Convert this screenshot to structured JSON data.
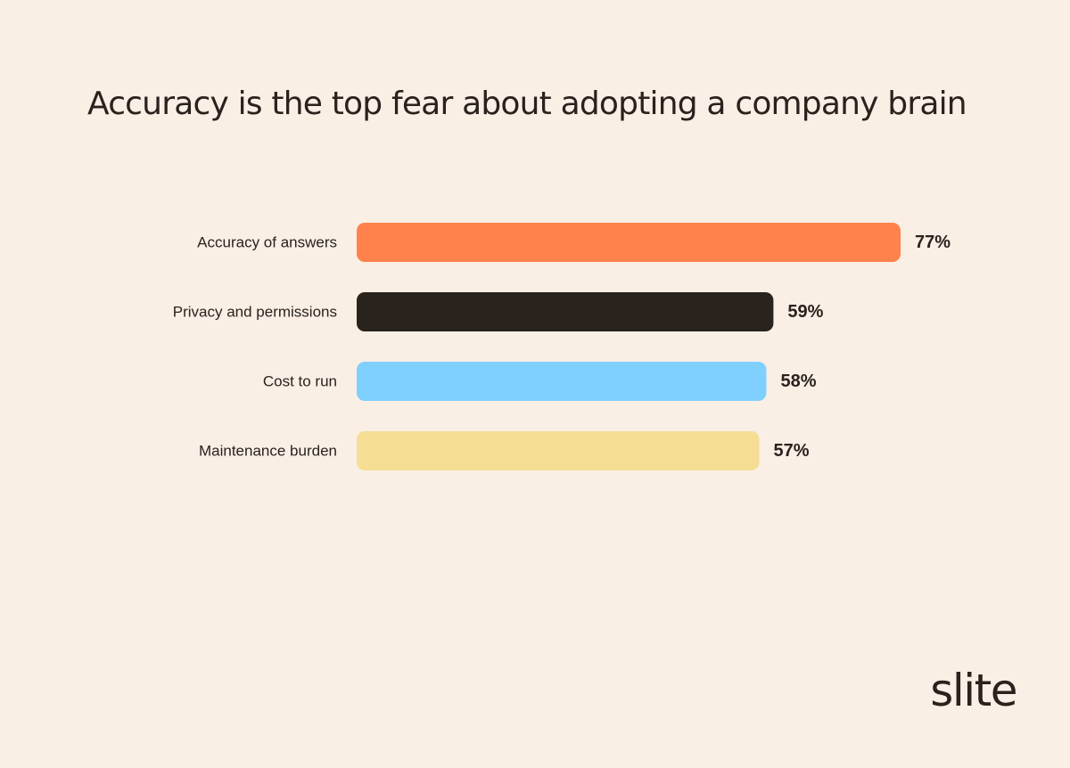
{
  "chart_data": {
    "type": "bar",
    "orientation": "horizontal",
    "title": "Accuracy is the top fear about adopting a company brain",
    "categories": [
      "Accuracy of answers",
      "Privacy and permissions",
      "Cost to run",
      "Maintenance burden"
    ],
    "values": [
      77,
      59,
      58,
      57
    ],
    "value_labels": [
      "77%",
      "59%",
      "58%",
      "57%"
    ],
    "bar_colors": [
      "#FF824D",
      "#29221D",
      "#80D0FF",
      "#F5DE94"
    ],
    "xlim": [
      0,
      77
    ],
    "grid": false,
    "legend": "none"
  },
  "brand": {
    "logo_text": "slite"
  },
  "colors": {
    "background": "#FAEFE5",
    "text": "#29221D"
  }
}
